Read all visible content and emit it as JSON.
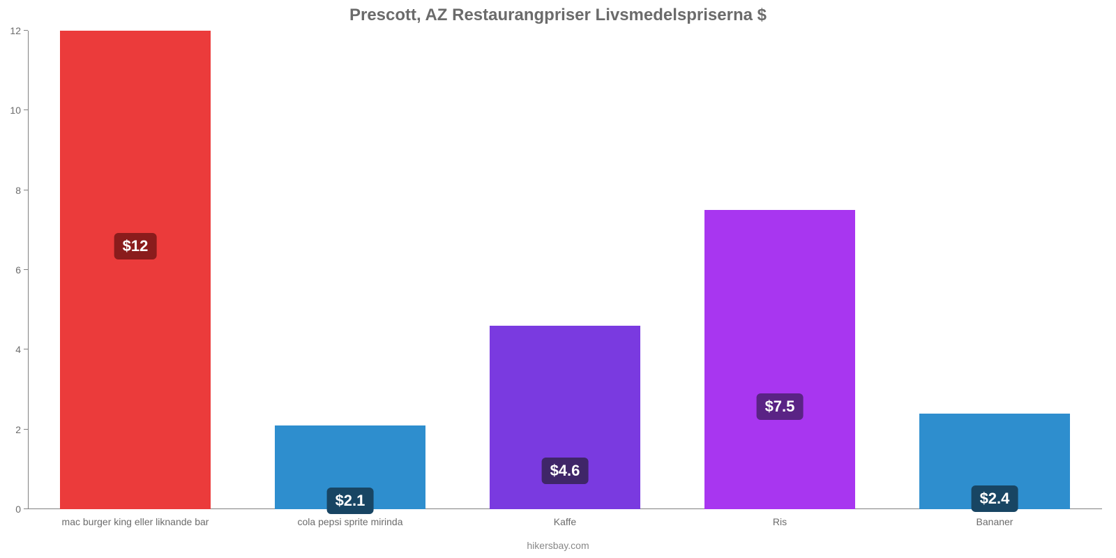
{
  "chart": {
    "type": "bar",
    "title": "Prescott, AZ Restaurangpriser Livsmedelspriserna $",
    "title_fontsize": 24,
    "title_color": "#6b6b6b",
    "background_color": "#ffffff",
    "axis_color": "#808080",
    "tick_label_color": "#6b6b6b",
    "tick_fontsize": 14,
    "category_fontsize": 14,
    "footer": "hikersbay.com",
    "footer_color": "#888888",
    "ylim": [
      0,
      12
    ],
    "ytick_step": 2,
    "yticks": [
      0,
      2,
      4,
      6,
      8,
      10,
      12
    ],
    "bar_width_percent": 14,
    "gap_percent": 6,
    "categories": [
      "mac burger king eller liknande bar",
      "cola pepsi sprite mirinda",
      "Kaffe",
      "Ris",
      "Bananer"
    ],
    "values": [
      12,
      2.1,
      4.6,
      7.5,
      2.4
    ],
    "value_labels": [
      "$12",
      "$2.1",
      "$4.6",
      "$7.5",
      "$2.4"
    ],
    "bar_colors": [
      "#eb3b3b",
      "#2e8ece",
      "#7a3ae0",
      "#a836f0",
      "#2e8ece"
    ],
    "badge_colors": [
      "#8a1c1c",
      "#184563",
      "#3f2668",
      "#5a2385",
      "#184563"
    ],
    "badge_text_color": "#ffffff",
    "badge_fontsize": 22,
    "label_offset_ratio": 0.45
  }
}
